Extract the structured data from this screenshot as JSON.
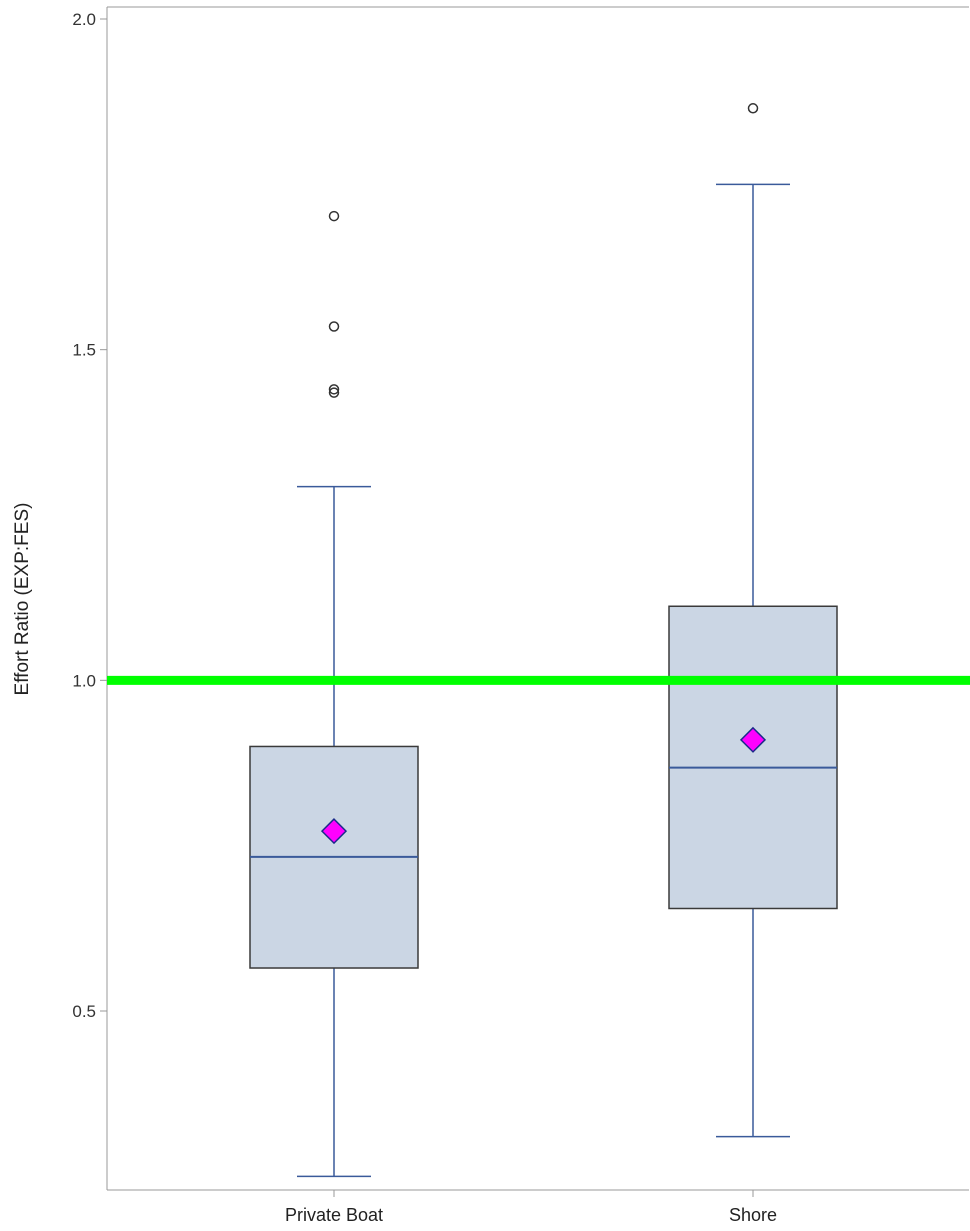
{
  "chart_data": {
    "type": "box",
    "ylabel": "Effort Ratio (EXP:FES)",
    "xlabel": "",
    "ylim": [
      0.245,
      2.02
    ],
    "yticks": [
      0.5,
      1.0,
      1.5,
      2.0
    ],
    "ytick_labels": [
      "0.5",
      "1.0",
      "1.5",
      "2.0"
    ],
    "grid": false,
    "legend": "none",
    "reference_line": {
      "y": 1.0,
      "color": "#00ff00"
    },
    "colors": {
      "box_fill": "#cbd6e4",
      "box_edge": "#3a3a3a",
      "whisker": "#3a5a9a",
      "median": "#3a5a9a",
      "mean_marker": "#ff00ff",
      "mean_edge": "#1a2a8a",
      "outlier": "#333333",
      "axis": "#999999"
    },
    "categories": [
      "Private Boat",
      "Shore"
    ],
    "boxes": [
      {
        "category": "Private Boat",
        "whisker_low": 0.25,
        "q1": 0.565,
        "median": 0.733,
        "q3": 0.9,
        "whisker_high": 1.293,
        "mean": 0.772,
        "outliers": [
          1.435,
          1.44,
          1.535,
          1.702
        ]
      },
      {
        "category": "Shore",
        "whisker_low": 0.31,
        "q1": 0.655,
        "median": 0.868,
        "q3": 1.112,
        "whisker_high": 1.75,
        "mean": 0.91,
        "outliers": [
          1.865
        ]
      }
    ]
  }
}
